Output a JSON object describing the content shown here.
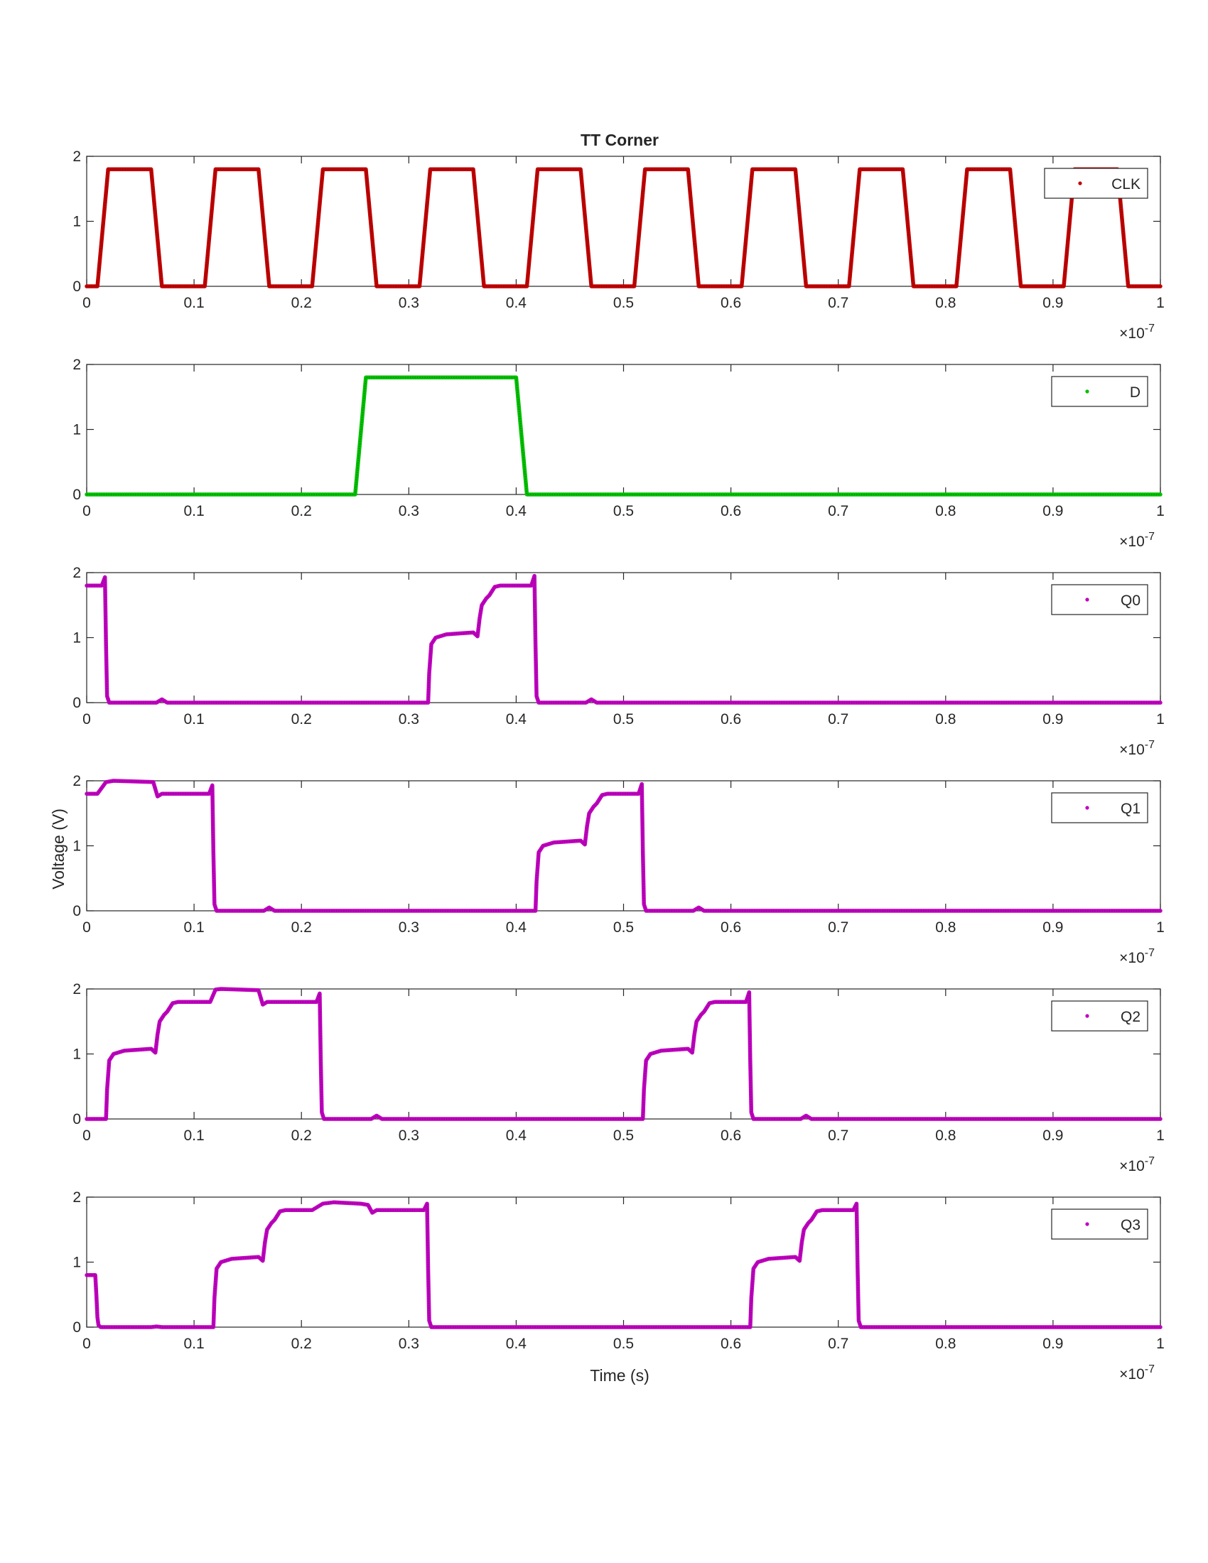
{
  "figure": {
    "title": "TT Corner",
    "xlabel": "Time (s)",
    "ylabel": "Voltage (V)",
    "x_exponent_base": "×10",
    "x_exponent_power": "-7"
  },
  "chart_data": [
    {
      "type": "line",
      "title": "TT Corner",
      "xlabel": "",
      "ylabel": "",
      "xlim": [
        0,
        1
      ],
      "ylim": [
        0,
        2
      ],
      "x_scale_factor": "1e-7",
      "xticks": [
        "0",
        "0.1",
        "0.2",
        "0.3",
        "0.4",
        "0.5",
        "0.6",
        "0.7",
        "0.8",
        "0.9",
        "1"
      ],
      "yticks": [
        "0",
        "1",
        "2"
      ],
      "legend_position": "top-right",
      "series": [
        {
          "name": "CLK",
          "color": "#C00000",
          "x": [
            0,
            0.01,
            0.02,
            0.06,
            0.07,
            0.11,
            0.12,
            0.16,
            0.17,
            0.21,
            0.22,
            0.26,
            0.27,
            0.31,
            0.32,
            0.36,
            0.37,
            0.41,
            0.42,
            0.46,
            0.47,
            0.51,
            0.52,
            0.56,
            0.57,
            0.61,
            0.62,
            0.66,
            0.67,
            0.71,
            0.72,
            0.76,
            0.77,
            0.81,
            0.82,
            0.86,
            0.87,
            0.91,
            0.92,
            0.96,
            0.97,
            1.0
          ],
          "y": [
            0,
            0,
            1.8,
            1.8,
            0,
            0,
            1.8,
            1.8,
            0,
            0,
            1.8,
            1.8,
            0,
            0,
            1.8,
            1.8,
            0,
            0,
            1.8,
            1.8,
            0,
            0,
            1.8,
            1.8,
            0,
            0,
            1.8,
            1.8,
            0,
            0,
            1.8,
            1.8,
            0,
            0,
            1.8,
            1.8,
            0,
            0,
            1.8,
            1.8,
            0,
            0
          ]
        }
      ]
    },
    {
      "type": "line",
      "title": "",
      "xlabel": "",
      "ylabel": "",
      "xlim": [
        0,
        1
      ],
      "ylim": [
        0,
        2
      ],
      "x_scale_factor": "1e-7",
      "xticks": [
        "0",
        "0.1",
        "0.2",
        "0.3",
        "0.4",
        "0.5",
        "0.6",
        "0.7",
        "0.8",
        "0.9",
        "1"
      ],
      "yticks": [
        "0",
        "1",
        "2"
      ],
      "legend_position": "top-right",
      "series": [
        {
          "name": "D",
          "color": "#00C000",
          "x": [
            0,
            0.25,
            0.26,
            0.4,
            0.41,
            1.0
          ],
          "y": [
            0,
            0,
            1.8,
            1.8,
            0,
            0
          ]
        }
      ]
    },
    {
      "type": "line",
      "title": "",
      "xlabel": "",
      "ylabel": "",
      "xlim": [
        0,
        1
      ],
      "ylim": [
        0,
        2
      ],
      "x_scale_factor": "1e-7",
      "xticks": [
        "0",
        "0.1",
        "0.2",
        "0.3",
        "0.4",
        "0.5",
        "0.6",
        "0.7",
        "0.8",
        "0.9",
        "1"
      ],
      "yticks": [
        "0",
        "1",
        "2"
      ],
      "legend_position": "top-right",
      "series": [
        {
          "name": "Q0",
          "color": "#BF00BF",
          "x": [
            0,
            0.014,
            0.017,
            0.018,
            0.019,
            0.021,
            0.025,
            0.065,
            0.07,
            0.075,
            0.318,
            0.319,
            0.321,
            0.325,
            0.335,
            0.36,
            0.364,
            0.366,
            0.368,
            0.372,
            0.375,
            0.38,
            0.385,
            0.414,
            0.417,
            0.418,
            0.419,
            0.421,
            0.425,
            0.465,
            0.47,
            0.475,
            1.0
          ],
          "y": [
            1.8,
            1.8,
            1.93,
            0.9,
            0.1,
            0.0,
            0.0,
            0.0,
            0.05,
            0.0,
            0.0,
            0.45,
            0.9,
            1.0,
            1.05,
            1.08,
            1.02,
            1.3,
            1.5,
            1.6,
            1.65,
            1.78,
            1.8,
            1.8,
            1.95,
            0.9,
            0.1,
            0.0,
            0.0,
            0.0,
            0.05,
            0.0,
            0.0
          ]
        }
      ]
    },
    {
      "type": "line",
      "title": "",
      "xlabel": "",
      "ylabel": "Voltage (V)",
      "xlim": [
        0,
        1
      ],
      "ylim": [
        0,
        2
      ],
      "x_scale_factor": "1e-7",
      "xticks": [
        "0",
        "0.1",
        "0.2",
        "0.3",
        "0.4",
        "0.5",
        "0.6",
        "0.7",
        "0.8",
        "0.9",
        "1"
      ],
      "yticks": [
        "0",
        "1",
        "2"
      ],
      "legend_position": "top-right",
      "series": [
        {
          "name": "Q1",
          "color": "#BF00BF",
          "x": [
            0,
            0.01,
            0.018,
            0.025,
            0.062,
            0.066,
            0.07,
            0.114,
            0.117,
            0.118,
            0.119,
            0.121,
            0.125,
            0.165,
            0.17,
            0.175,
            0.418,
            0.419,
            0.421,
            0.425,
            0.435,
            0.46,
            0.464,
            0.466,
            0.468,
            0.472,
            0.475,
            0.48,
            0.485,
            0.514,
            0.517,
            0.518,
            0.519,
            0.521,
            0.525,
            0.565,
            0.57,
            0.575,
            1.0
          ],
          "y": [
            1.8,
            1.8,
            1.98,
            2.0,
            1.98,
            1.76,
            1.8,
            1.8,
            1.93,
            0.9,
            0.1,
            0.0,
            0.0,
            0.0,
            0.05,
            0.0,
            0.0,
            0.45,
            0.9,
            1.0,
            1.05,
            1.08,
            1.02,
            1.3,
            1.5,
            1.6,
            1.65,
            1.78,
            1.8,
            1.8,
            1.95,
            0.9,
            0.1,
            0.0,
            0.0,
            0.0,
            0.05,
            0.0,
            0.0
          ]
        }
      ]
    },
    {
      "type": "line",
      "title": "",
      "xlabel": "",
      "ylabel": "",
      "xlim": [
        0,
        1
      ],
      "ylim": [
        0,
        2
      ],
      "x_scale_factor": "1e-7",
      "xticks": [
        "0",
        "0.1",
        "0.2",
        "0.3",
        "0.4",
        "0.5",
        "0.6",
        "0.7",
        "0.8",
        "0.9",
        "1"
      ],
      "yticks": [
        "0",
        "1",
        "2"
      ],
      "legend_position": "top-right",
      "series": [
        {
          "name": "Q2",
          "color": "#BF00BF",
          "x": [
            0,
            0.018,
            0.019,
            0.021,
            0.025,
            0.035,
            0.06,
            0.064,
            0.066,
            0.068,
            0.072,
            0.075,
            0.08,
            0.085,
            0.115,
            0.12,
            0.125,
            0.16,
            0.164,
            0.168,
            0.214,
            0.217,
            0.218,
            0.219,
            0.221,
            0.225,
            0.265,
            0.27,
            0.275,
            0.518,
            0.519,
            0.521,
            0.525,
            0.535,
            0.56,
            0.564,
            0.566,
            0.568,
            0.572,
            0.575,
            0.58,
            0.585,
            0.614,
            0.617,
            0.618,
            0.619,
            0.621,
            0.625,
            0.665,
            0.67,
            0.675,
            1.0
          ],
          "y": [
            0,
            0,
            0.45,
            0.9,
            1.0,
            1.05,
            1.08,
            1.02,
            1.3,
            1.5,
            1.6,
            1.65,
            1.78,
            1.8,
            1.8,
            1.99,
            2.0,
            1.98,
            1.76,
            1.8,
            1.8,
            1.93,
            0.9,
            0.1,
            0.0,
            0.0,
            0.0,
            0.05,
            0.0,
            0.0,
            0.45,
            0.9,
            1.0,
            1.05,
            1.08,
            1.02,
            1.3,
            1.5,
            1.6,
            1.65,
            1.78,
            1.8,
            1.8,
            1.95,
            0.9,
            0.1,
            0.0,
            0.0,
            0.0,
            0.05,
            0.0,
            0.0
          ]
        }
      ]
    },
    {
      "type": "line",
      "title": "",
      "xlabel": "Time (s)",
      "ylabel": "",
      "xlim": [
        0,
        1
      ],
      "ylim": [
        0,
        2
      ],
      "x_scale_factor": "1e-7",
      "xticks": [
        "0",
        "0.1",
        "0.2",
        "0.3",
        "0.4",
        "0.5",
        "0.6",
        "0.7",
        "0.8",
        "0.9",
        "1"
      ],
      "yticks": [
        "0",
        "1",
        "2"
      ],
      "legend_position": "top-right",
      "series": [
        {
          "name": "Q3",
          "color": "#BF00BF",
          "x": [
            0,
            0.008,
            0.009,
            0.01,
            0.011,
            0.013,
            0.06,
            0.065,
            0.07,
            0.118,
            0.119,
            0.121,
            0.125,
            0.135,
            0.16,
            0.164,
            0.166,
            0.168,
            0.172,
            0.175,
            0.18,
            0.185,
            0.21,
            0.22,
            0.23,
            0.255,
            0.262,
            0.266,
            0.27,
            0.314,
            0.317,
            0.318,
            0.319,
            0.321,
            0.325,
            0.618,
            0.619,
            0.621,
            0.625,
            0.635,
            0.66,
            0.664,
            0.666,
            0.668,
            0.672,
            0.675,
            0.68,
            0.685,
            0.714,
            0.717,
            0.718,
            0.719,
            0.721,
            0.725,
            1.0
          ],
          "y": [
            0.8,
            0.8,
            0.5,
            0.15,
            0.03,
            0.0,
            0.0,
            0.01,
            0.0,
            0.0,
            0.45,
            0.9,
            1.0,
            1.05,
            1.08,
            1.02,
            1.3,
            1.5,
            1.6,
            1.65,
            1.78,
            1.8,
            1.8,
            1.9,
            1.92,
            1.9,
            1.88,
            1.76,
            1.8,
            1.8,
            1.9,
            0.9,
            0.1,
            0.0,
            0.0,
            0.0,
            0.45,
            0.9,
            1.0,
            1.05,
            1.08,
            1.02,
            1.3,
            1.5,
            1.6,
            1.65,
            1.78,
            1.8,
            1.8,
            1.9,
            0.9,
            0.1,
            0.0,
            0.0,
            0.0
          ]
        }
      ]
    }
  ]
}
